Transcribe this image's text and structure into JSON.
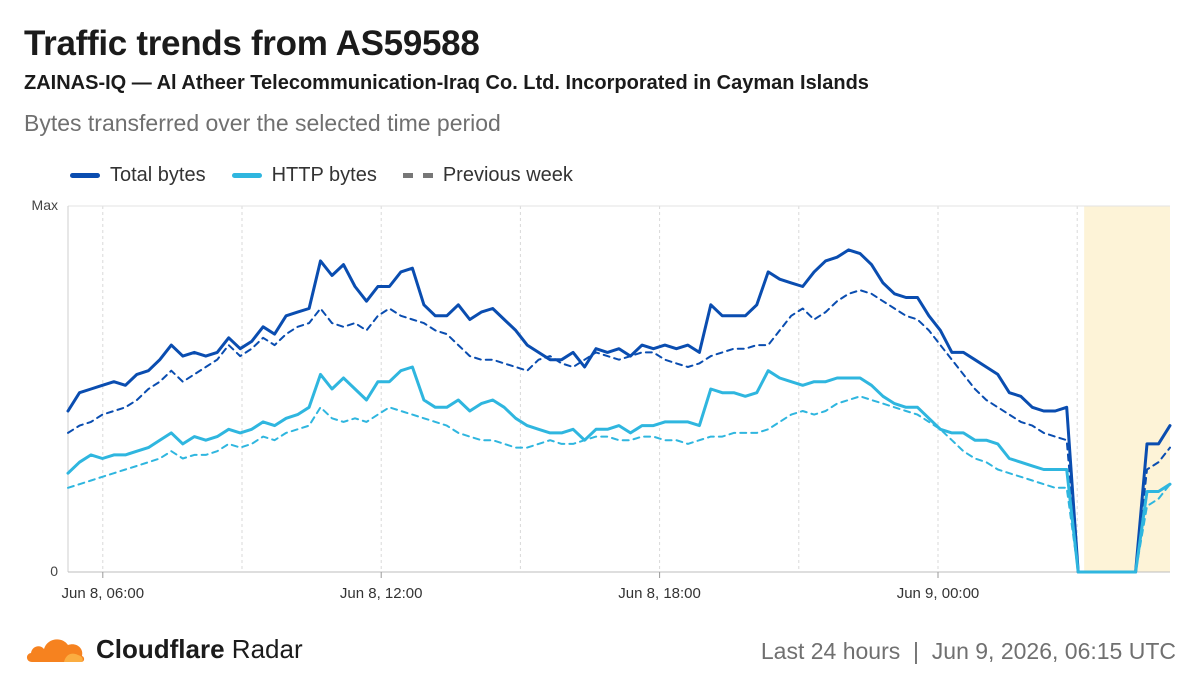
{
  "header": {
    "title": "Traffic trends from AS59588",
    "subtitle": "ZAINAS-IQ — Al Atheer Telecommunication-Iraq Co. Ltd. Incorporated in Cayman Islands",
    "description": "Bytes transferred over the selected time period"
  },
  "legend": [
    {
      "label": "Total bytes",
      "color": "#0a4db0",
      "style": "solid"
    },
    {
      "label": "HTTP bytes",
      "color": "#2fb6df",
      "style": "solid"
    },
    {
      "label": "Previous week",
      "color": "#777777",
      "style": "dashed"
    }
  ],
  "footer": {
    "brand_bold": "Cloudflare",
    "brand_rest": " Radar",
    "period": "Last 24 hours",
    "separator": "|",
    "timestamp": "Jun 9, 2026, 06:15 UTC"
  },
  "chart_data": {
    "type": "line",
    "ytick_labels": [
      "Max",
      "0"
    ],
    "xtick_labels": [
      "Jun 8, 06:00",
      "Jun 8, 12:00",
      "Jun 8, 18:00",
      "Jun 9, 00:00"
    ],
    "x_unit": "hours since start of window",
    "xlim": [
      0,
      23.75
    ],
    "ylim": [
      0,
      1
    ],
    "grid": true,
    "highlight_region": {
      "x_start": 21.9,
      "x_end": 23.75,
      "color": "#fdf3d7"
    },
    "series": [
      {
        "name": "Total bytes",
        "color": "#0a4db0",
        "style": "solid",
        "width": 3,
        "values": [
          0.44,
          0.49,
          0.5,
          0.51,
          0.52,
          0.51,
          0.54,
          0.55,
          0.58,
          0.62,
          0.59,
          0.6,
          0.59,
          0.6,
          0.64,
          0.61,
          0.63,
          0.67,
          0.65,
          0.7,
          0.71,
          0.72,
          0.85,
          0.81,
          0.84,
          0.78,
          0.74,
          0.78,
          0.78,
          0.82,
          0.83,
          0.73,
          0.7,
          0.7,
          0.73,
          0.69,
          0.71,
          0.72,
          0.69,
          0.66,
          0.62,
          0.6,
          0.58,
          0.58,
          0.6,
          0.56,
          0.61,
          0.6,
          0.61,
          0.59,
          0.62,
          0.61,
          0.62,
          0.61,
          0.62,
          0.6,
          0.73,
          0.7,
          0.7,
          0.7,
          0.73,
          0.82,
          0.8,
          0.79,
          0.78,
          0.82,
          0.85,
          0.86,
          0.88,
          0.87,
          0.84,
          0.79,
          0.76,
          0.75,
          0.75,
          0.7,
          0.66,
          0.6,
          0.6,
          0.58,
          0.56,
          0.54,
          0.49,
          0.48,
          0.45,
          0.44,
          0.44,
          0.45,
          0.0,
          0.0,
          0.0,
          0.0,
          0.0,
          0.0,
          0.35,
          0.35,
          0.4
        ]
      },
      {
        "name": "HTTP bytes",
        "color": "#2fb6df",
        "style": "solid",
        "width": 3,
        "values": [
          0.27,
          0.3,
          0.32,
          0.31,
          0.32,
          0.32,
          0.33,
          0.34,
          0.36,
          0.38,
          0.35,
          0.37,
          0.36,
          0.37,
          0.39,
          0.38,
          0.39,
          0.41,
          0.4,
          0.42,
          0.43,
          0.45,
          0.54,
          0.5,
          0.53,
          0.5,
          0.47,
          0.52,
          0.52,
          0.55,
          0.56,
          0.47,
          0.45,
          0.45,
          0.47,
          0.44,
          0.46,
          0.47,
          0.45,
          0.42,
          0.4,
          0.39,
          0.38,
          0.38,
          0.39,
          0.36,
          0.39,
          0.39,
          0.4,
          0.38,
          0.4,
          0.4,
          0.41,
          0.41,
          0.41,
          0.4,
          0.5,
          0.49,
          0.49,
          0.48,
          0.49,
          0.55,
          0.53,
          0.52,
          0.51,
          0.52,
          0.52,
          0.53,
          0.53,
          0.53,
          0.51,
          0.48,
          0.46,
          0.45,
          0.45,
          0.42,
          0.39,
          0.38,
          0.38,
          0.36,
          0.36,
          0.35,
          0.31,
          0.3,
          0.29,
          0.28,
          0.28,
          0.28,
          0.0,
          0.0,
          0.0,
          0.0,
          0.0,
          0.0,
          0.22,
          0.22,
          0.24
        ]
      },
      {
        "name": "Previous week (total)",
        "color": "#0a4db0",
        "style": "dashed",
        "width": 2,
        "values": [
          0.38,
          0.4,
          0.41,
          0.43,
          0.44,
          0.45,
          0.47,
          0.5,
          0.52,
          0.55,
          0.52,
          0.54,
          0.56,
          0.58,
          0.62,
          0.59,
          0.61,
          0.64,
          0.62,
          0.65,
          0.67,
          0.68,
          0.72,
          0.68,
          0.67,
          0.68,
          0.66,
          0.7,
          0.72,
          0.7,
          0.69,
          0.68,
          0.66,
          0.65,
          0.62,
          0.59,
          0.58,
          0.58,
          0.57,
          0.56,
          0.55,
          0.58,
          0.59,
          0.57,
          0.56,
          0.58,
          0.6,
          0.59,
          0.58,
          0.59,
          0.6,
          0.6,
          0.58,
          0.57,
          0.56,
          0.57,
          0.59,
          0.6,
          0.61,
          0.61,
          0.62,
          0.62,
          0.66,
          0.7,
          0.72,
          0.69,
          0.71,
          0.74,
          0.76,
          0.77,
          0.76,
          0.74,
          0.72,
          0.7,
          0.69,
          0.66,
          0.62,
          0.58,
          0.54,
          0.5,
          0.47,
          0.45,
          0.43,
          0.41,
          0.4,
          0.38,
          0.37,
          0.36,
          0.0,
          0.0,
          0.0,
          0.0,
          0.0,
          0.0,
          0.28,
          0.3,
          0.34
        ]
      },
      {
        "name": "Previous week (HTTP)",
        "color": "#2fb6df",
        "style": "dashed",
        "width": 2,
        "values": [
          0.23,
          0.24,
          0.25,
          0.26,
          0.27,
          0.28,
          0.29,
          0.3,
          0.31,
          0.33,
          0.31,
          0.32,
          0.32,
          0.33,
          0.35,
          0.34,
          0.35,
          0.37,
          0.36,
          0.38,
          0.39,
          0.4,
          0.45,
          0.42,
          0.41,
          0.42,
          0.41,
          0.43,
          0.45,
          0.44,
          0.43,
          0.42,
          0.41,
          0.4,
          0.38,
          0.37,
          0.36,
          0.36,
          0.35,
          0.34,
          0.34,
          0.35,
          0.36,
          0.35,
          0.35,
          0.36,
          0.37,
          0.37,
          0.36,
          0.36,
          0.37,
          0.37,
          0.36,
          0.36,
          0.35,
          0.36,
          0.37,
          0.37,
          0.38,
          0.38,
          0.38,
          0.39,
          0.41,
          0.43,
          0.44,
          0.43,
          0.44,
          0.46,
          0.47,
          0.48,
          0.47,
          0.46,
          0.45,
          0.44,
          0.43,
          0.41,
          0.39,
          0.36,
          0.33,
          0.31,
          0.3,
          0.28,
          0.27,
          0.26,
          0.25,
          0.24,
          0.23,
          0.23,
          0.0,
          0.0,
          0.0,
          0.0,
          0.0,
          0.0,
          0.18,
          0.2,
          0.24
        ]
      }
    ]
  }
}
